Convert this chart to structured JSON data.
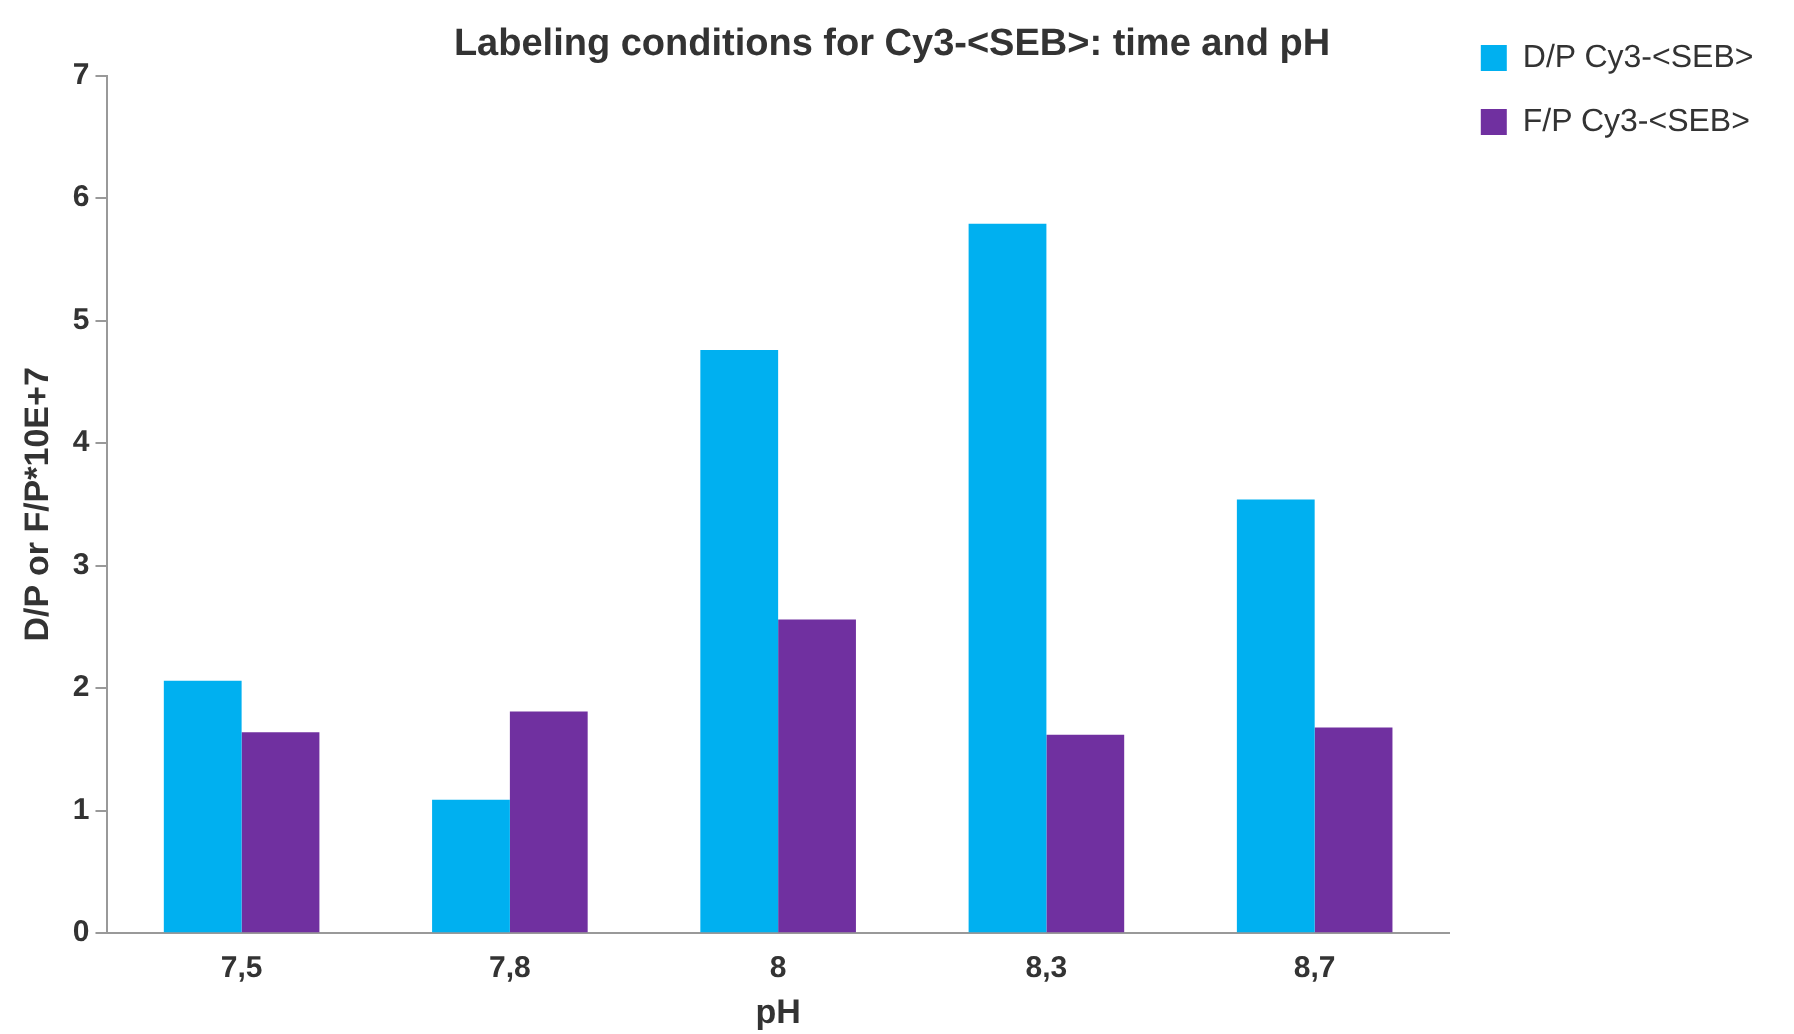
{
  "chart_data": {
    "type": "bar",
    "title": "Labeling conditions for Cy3-<SEB>: time and pH",
    "xlabel": "pH",
    "ylabel": "D/P or F/P*10E+7",
    "categories": [
      "7,5",
      "7,8",
      "8",
      "8,3",
      "8,7"
    ],
    "series": [
      {
        "name": "D/P Cy3-<SEB>",
        "color": "#00b0f0",
        "values": [
          2.06,
          1.09,
          4.76,
          5.79,
          3.54
        ]
      },
      {
        "name": "F/P Cy3-<SEB>",
        "color": "#7030a0",
        "values": [
          1.64,
          1.81,
          2.56,
          1.62,
          1.68
        ]
      }
    ],
    "ylim": [
      0,
      7
    ],
    "yticks": [
      0,
      1,
      2,
      3,
      4,
      5,
      6,
      7
    ],
    "grid": false,
    "legend": "top right"
  }
}
